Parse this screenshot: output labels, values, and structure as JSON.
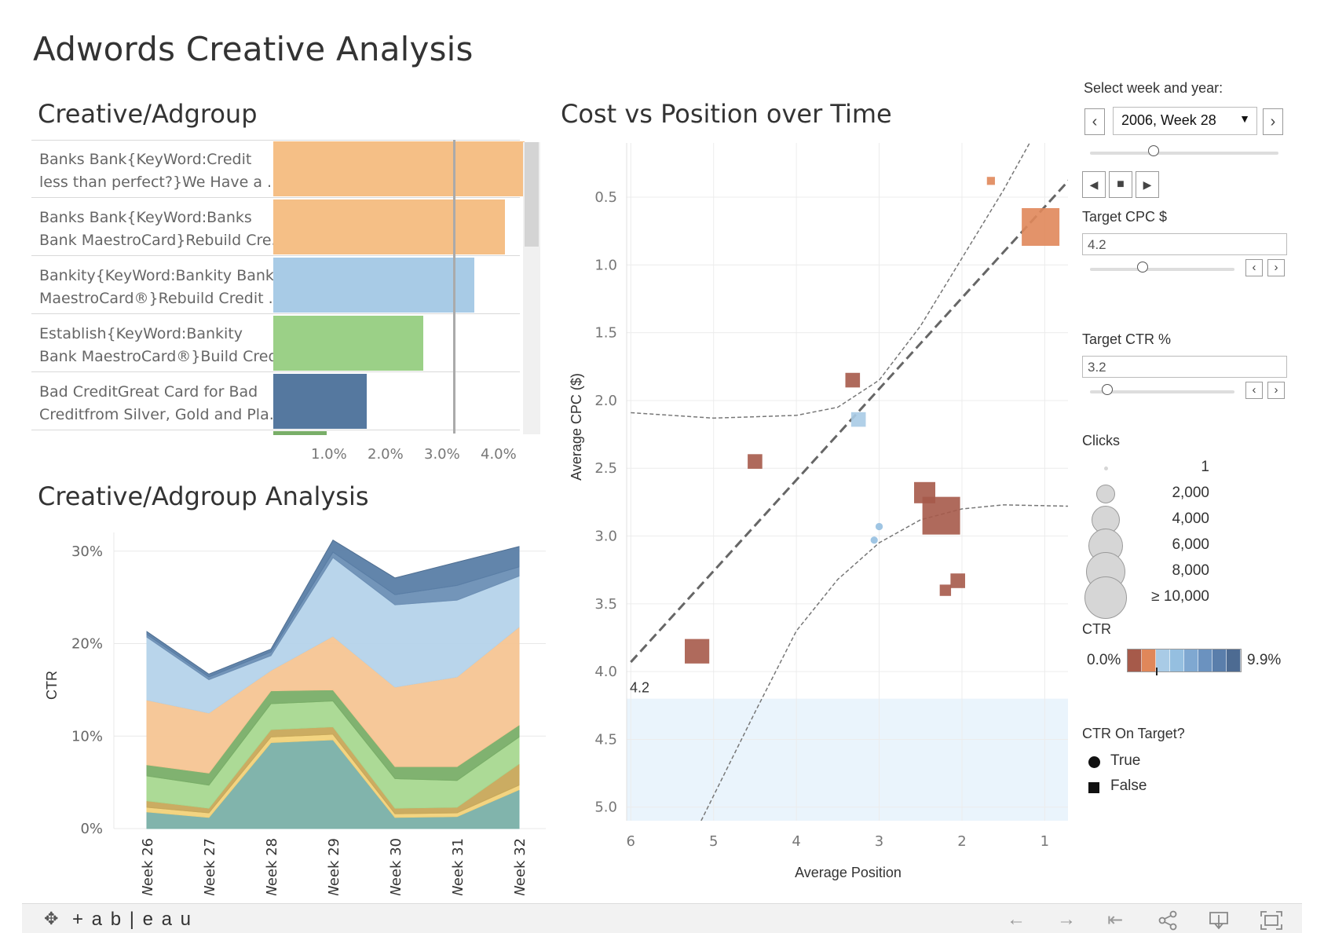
{
  "title": "Adwords Creative Analysis",
  "bar_section": {
    "title": "Creative/Adgroup",
    "rows": [
      {
        "line1": "Banks Bank{KeyWord:Credit",
        "line2": "less than perfect?}We Have a ..",
        "value": 4.45,
        "color": "#f5bf86"
      },
      {
        "line1": "Banks Bank{KeyWord:Banks",
        "line2": "Bank MaestroCard}Rebuild Cre..",
        "value": 4.1,
        "color": "#f5bf86"
      },
      {
        "line1": "Bankity{KeyWord:Bankity Bank",
        "line2": "MaestroCard®}Rebuild Credit ..",
        "value": 3.55,
        "color": "#a8cbe6"
      },
      {
        "line1": "Establish{KeyWord:Bankity",
        "line2": "Bank MaestroCard®}Build Cred..",
        "value": 2.65,
        "color": "#9bd087"
      },
      {
        "line1": "Bad CreditGreat Card for Bad",
        "line2": "Creditfrom Silver, Gold and Pla..",
        "value": 1.65,
        "color": "#55789f"
      }
    ],
    "axis_ticks": [
      "1.0%",
      "2.0%",
      "3.0%",
      "4.0%"
    ],
    "reference_line": 3.2
  },
  "area_section": {
    "title": "Creative/Adgroup Analysis"
  },
  "scatter_section": {
    "title": "Cost vs Position over Time"
  },
  "controls": {
    "week_label": "Select week and year:",
    "week_value": "2006, Week 28",
    "target_cpc_label": "Target CPC $",
    "target_cpc_value": "4.2",
    "target_ctr_label": "Target CTR %",
    "target_ctr_value": "3.2"
  },
  "legend": {
    "clicks_title": "Clicks",
    "clicks_items": [
      "1",
      "2,000",
      "4,000",
      "6,000",
      "8,000",
      "≥ 10,000"
    ],
    "ctr_title": "CTR",
    "ctr_min": "0.0%",
    "ctr_max": "9.9%",
    "ctr_colors": [
      "#a65a4a",
      "#e0875a",
      "#a9cbe6",
      "#95bfe0",
      "#7fa8d1",
      "#6b92bf",
      "#5a7eab",
      "#4d6b92"
    ],
    "target_title": "CTR On Target?",
    "target_true": "True",
    "target_false": "False"
  },
  "footer": {
    "brand": "+ a b | e a u"
  },
  "chart_data": [
    {
      "type": "bar",
      "title": "Creative/Adgroup",
      "categories": [
        "Banks Bank{KeyWord:Credit less than perfect?}We Have a ..",
        "Banks Bank{KeyWord:Banks Bank MaestroCard}Rebuild Cre..",
        "Bankity{KeyWord:Bankity Bank MaestroCard®}Rebuild Credit ..",
        "Establish{KeyWord:Bankity Bank MaestroCard®}Build Cred..",
        "Bad CreditGreat Card for Bad Creditfrom Silver, Gold and Pla.."
      ],
      "values": [
        4.45,
        4.1,
        3.55,
        2.65,
        1.65
      ],
      "xlim": [
        0,
        4.6
      ],
      "reference_line": 3.2,
      "xlabel": "",
      "ylabel": ""
    },
    {
      "type": "area",
      "title": "Creative/Adgroup Analysis",
      "ylabel": "CTR",
      "ylim": [
        0,
        31
      ],
      "categories": [
        "Week 26",
        "Week 27",
        "Week 28",
        "Week 29",
        "Week 30",
        "Week 31",
        "Week 32"
      ],
      "y_ticks": [
        "0%",
        "10%",
        "20%",
        "30%"
      ],
      "series": [
        {
          "values": [
            1.8,
            1.2,
            9.3,
            9.6,
            1.2,
            1.3,
            4.2
          ],
          "color": "#7ab0a8"
        },
        {
          "values": [
            0.5,
            0.5,
            0.6,
            0.6,
            0.4,
            0.4,
            0.5
          ],
          "color": "#f2d27a"
        },
        {
          "values": [
            0.7,
            0.5,
            0.8,
            0.8,
            0.6,
            0.6,
            2.3
          ],
          "color": "#c8a85a"
        },
        {
          "values": [
            2.7,
            2.5,
            2.8,
            2.8,
            3.2,
            2.9,
            2.9
          ],
          "color": "#a8d890"
        },
        {
          "values": [
            1.2,
            1.3,
            1.4,
            1.2,
            1.3,
            1.5,
            1.3
          ],
          "color": "#79ae68"
        },
        {
          "values": [
            7.0,
            6.5,
            2.2,
            5.8,
            8.6,
            9.7,
            10.6
          ],
          "color": "#f5c593"
        },
        {
          "values": [
            6.8,
            3.6,
            1.6,
            8.5,
            8.9,
            8.3,
            5.5
          ],
          "color": "#b5d3ea"
        },
        {
          "values": [
            0.3,
            0.3,
            0.4,
            0.6,
            1.1,
            1.6,
            1.0
          ],
          "color": "#6c8fb5"
        },
        {
          "values": [
            0.3,
            0.3,
            0.3,
            1.3,
            1.8,
            2.5,
            2.2
          ],
          "color": "#5a7ea6"
        }
      ]
    },
    {
      "type": "scatter",
      "title": "Cost vs Position over Time",
      "xlabel": "Average Position",
      "ylabel": "Average CPC ($)",
      "x_reversed": true,
      "y_reversed": true,
      "xlim": [
        6.05,
        0.7
      ],
      "ylim": [
        0.1,
        5.1
      ],
      "x_ticks": [
        6,
        5,
        4,
        3,
        2,
        1
      ],
      "y_ticks": [
        0.5,
        1.0,
        1.5,
        2.0,
        2.5,
        3.0,
        3.5,
        4.0,
        4.5,
        5.0
      ],
      "target_cpc": 4.2,
      "target_cpc_label": "4.2",
      "points": [
        {
          "x": 1.65,
          "y": 0.38,
          "size": 1,
          "shape": "square",
          "color": "#e0875a"
        },
        {
          "x": 1.05,
          "y": 0.72,
          "size": 10,
          "shape": "square",
          "color": "#e0875a"
        },
        {
          "x": 3.32,
          "y": 1.85,
          "size": 3,
          "shape": "square",
          "color": "#a65a4a"
        },
        {
          "x": 3.25,
          "y": 2.14,
          "size": 3,
          "shape": "square",
          "color": "#a9cbe6"
        },
        {
          "x": 4.5,
          "y": 2.45,
          "size": 3,
          "shape": "square",
          "color": "#a65a4a"
        },
        {
          "x": 2.45,
          "y": 2.68,
          "size": 5,
          "shape": "square",
          "color": "#a65a4a"
        },
        {
          "x": 2.25,
          "y": 2.85,
          "size": 10,
          "shape": "square",
          "color": "#a65a4a"
        },
        {
          "x": 3.0,
          "y": 2.93,
          "size": 1,
          "shape": "circle",
          "color": "#95bfe0"
        },
        {
          "x": 3.06,
          "y": 3.03,
          "size": 1,
          "shape": "circle",
          "color": "#95bfe0"
        },
        {
          "x": 2.05,
          "y": 3.33,
          "size": 3,
          "shape": "square",
          "color": "#a65a4a"
        },
        {
          "x": 2.2,
          "y": 3.4,
          "size": 2,
          "shape": "square",
          "color": "#a65a4a"
        },
        {
          "x": 5.2,
          "y": 3.85,
          "size": 6,
          "shape": "square",
          "color": "#a65a4a"
        }
      ],
      "trend_line": {
        "x": [
          6,
          0.7
        ],
        "y": [
          3.93,
          0.37
        ]
      }
    }
  ]
}
